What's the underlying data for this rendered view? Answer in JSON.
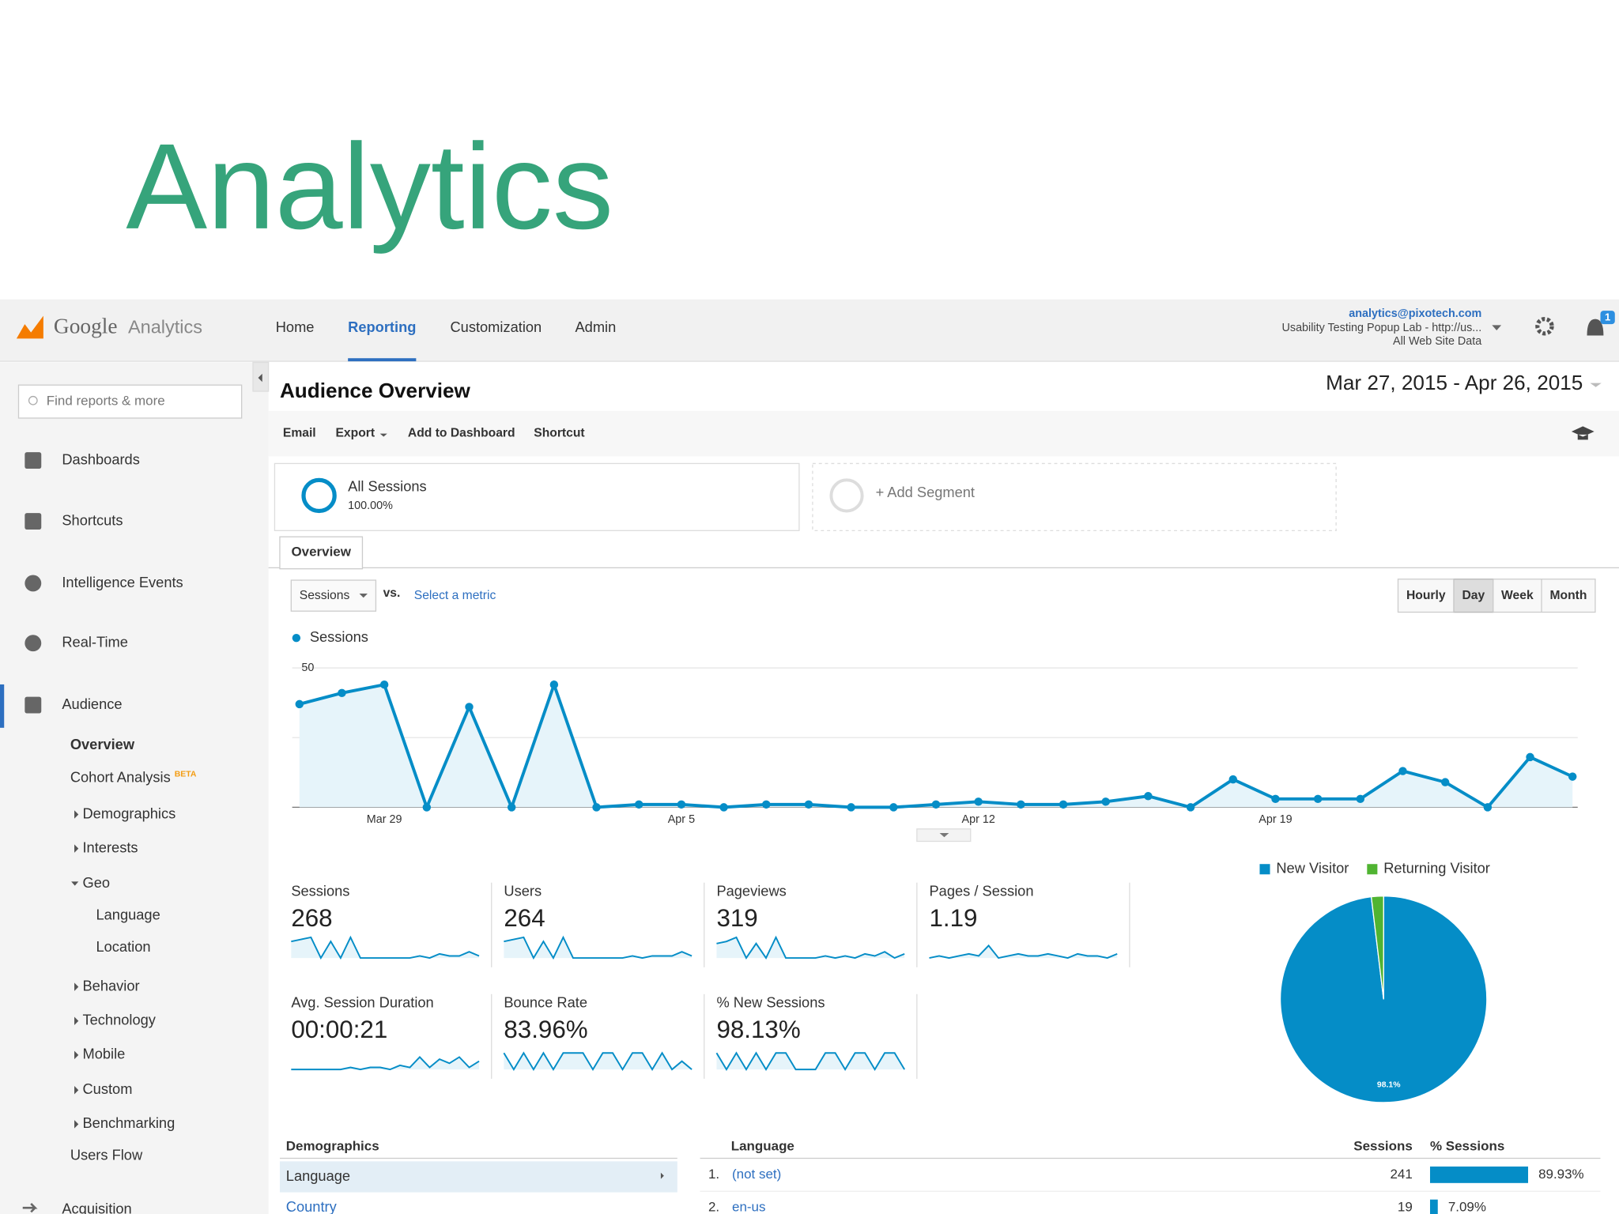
{
  "slide_title": "Analytics",
  "header": {
    "logo": {
      "brand": "Google",
      "product": "Analytics"
    },
    "nav": [
      "Home",
      "Reporting",
      "Customization",
      "Admin"
    ],
    "account": {
      "email": "analytics@pixotech.com",
      "property": "Usability Testing Popup Lab - http://us...",
      "view": "All Web Site Data"
    },
    "notifications": "1"
  },
  "sidebar": {
    "search_placeholder": "Find reports & more",
    "top": [
      "Dashboards",
      "Shortcuts",
      "Intelligence Events",
      "Real-Time",
      "Audience"
    ],
    "audience": {
      "overview": "Overview",
      "cohort": "Cohort Analysis",
      "cohort_badge": "BETA",
      "groups": [
        "Demographics",
        "Interests",
        "Geo"
      ],
      "geo": [
        "Language",
        "Location"
      ],
      "more": [
        "Behavior",
        "Technology",
        "Mobile",
        "Custom",
        "Benchmarking"
      ],
      "users_flow": "Users Flow"
    },
    "bottom": "Acquisition"
  },
  "main": {
    "title": "Audience Overview",
    "date_range": "Mar 27, 2015 - Apr 26, 2015",
    "toolbar": [
      "Email",
      "Export",
      "Add to Dashboard",
      "Shortcut"
    ],
    "segments": {
      "name": "All Sessions",
      "share": "100.00%",
      "add": "+ Add Segment"
    },
    "tab": "Overview",
    "metric": "Sessions",
    "vs": "vs.",
    "select_metric": "Select a metric",
    "granularity": [
      "Hourly",
      "Day",
      "Week",
      "Month"
    ]
  },
  "chart_data": [
    {
      "type": "line",
      "series": [
        {
          "name": "Sessions",
          "color": "#058dc7",
          "values": [
            37,
            41,
            44,
            0,
            36,
            0,
            44,
            0,
            1,
            1,
            0,
            1,
            1,
            0,
            0,
            1,
            2,
            1,
            1,
            2,
            4,
            0,
            10,
            3,
            3,
            3,
            13,
            9,
            0,
            18,
            11
          ]
        }
      ],
      "categories": [
        null,
        null,
        "Mar 29",
        null,
        null,
        null,
        null,
        null,
        null,
        "Apr 5",
        null,
        null,
        null,
        null,
        null,
        null,
        "Apr 12",
        null,
        null,
        null,
        null,
        null,
        null,
        "Apr 19",
        null,
        null,
        null,
        null,
        null,
        null,
        null
      ],
      "ylim": [
        0,
        50
      ],
      "yticks": [
        25,
        50
      ],
      "grid": true
    },
    {
      "type": "pie",
      "categories": [
        "New Visitor",
        "Returning Visitor"
      ],
      "values": [
        98.1,
        1.9
      ],
      "colors": [
        "#058dc7",
        "#50b432"
      ],
      "value_labels": [
        "98.1%",
        null
      ]
    }
  ],
  "metrics": [
    {
      "label": "Sessions",
      "value": 268,
      "spark": [
        8,
        9,
        10,
        0,
        8,
        0,
        10,
        0,
        0,
        0,
        0,
        0,
        0,
        1,
        0,
        2,
        1,
        1,
        3,
        1
      ]
    },
    {
      "label": "Users",
      "value": 264,
      "spark": [
        8,
        9,
        10,
        0,
        8,
        0,
        10,
        0,
        0,
        0,
        0,
        0,
        0,
        1,
        0,
        1,
        1,
        1,
        3,
        1
      ]
    },
    {
      "label": "Pageviews",
      "value": 319,
      "spark": [
        7,
        8,
        10,
        0,
        7,
        0,
        10,
        0,
        0,
        0,
        0,
        1,
        0,
        1,
        0,
        2,
        1,
        3,
        0,
        2
      ]
    },
    {
      "label": "Pages / Session",
      "value": 1.19,
      "spark": [
        0,
        1,
        0,
        1,
        2,
        1,
        6,
        0,
        1,
        2,
        1,
        1,
        2,
        1,
        0,
        2,
        1,
        1,
        0,
        2
      ]
    },
    {
      "label": "Avg. Session Duration",
      "value": "00:00:21",
      "spark": [
        0,
        0,
        0,
        0,
        0,
        0,
        1,
        0,
        1,
        1,
        0,
        2,
        1,
        6,
        1,
        5,
        3,
        6,
        1,
        4
      ]
    },
    {
      "label": "Bounce Rate",
      "value": "83.96%",
      "spark": [
        8,
        0,
        8,
        0,
        8,
        0,
        8,
        8,
        8,
        0,
        8,
        8,
        0,
        8,
        8,
        0,
        8,
        0,
        4,
        0
      ]
    },
    {
      "label": "% New Sessions",
      "value": "98.13%",
      "spark": [
        8,
        0,
        8,
        0,
        8,
        0,
        8,
        8,
        0,
        0,
        0,
        8,
        8,
        0,
        8,
        8,
        0,
        8,
        8,
        0
      ]
    }
  ],
  "demographics": {
    "title": "Demographics",
    "rows": [
      "Language",
      "Country"
    ]
  },
  "language_table": {
    "columns": [
      "Language",
      "Sessions",
      "% Sessions"
    ],
    "rows": [
      {
        "rank": "1.",
        "name": "(not set)",
        "sessions": 241,
        "share": 89.93,
        "share_label": "89.93%"
      },
      {
        "rank": "2.",
        "name": "en-us",
        "sessions": 19,
        "share": 7.09,
        "share_label": "7.09%"
      }
    ]
  }
}
